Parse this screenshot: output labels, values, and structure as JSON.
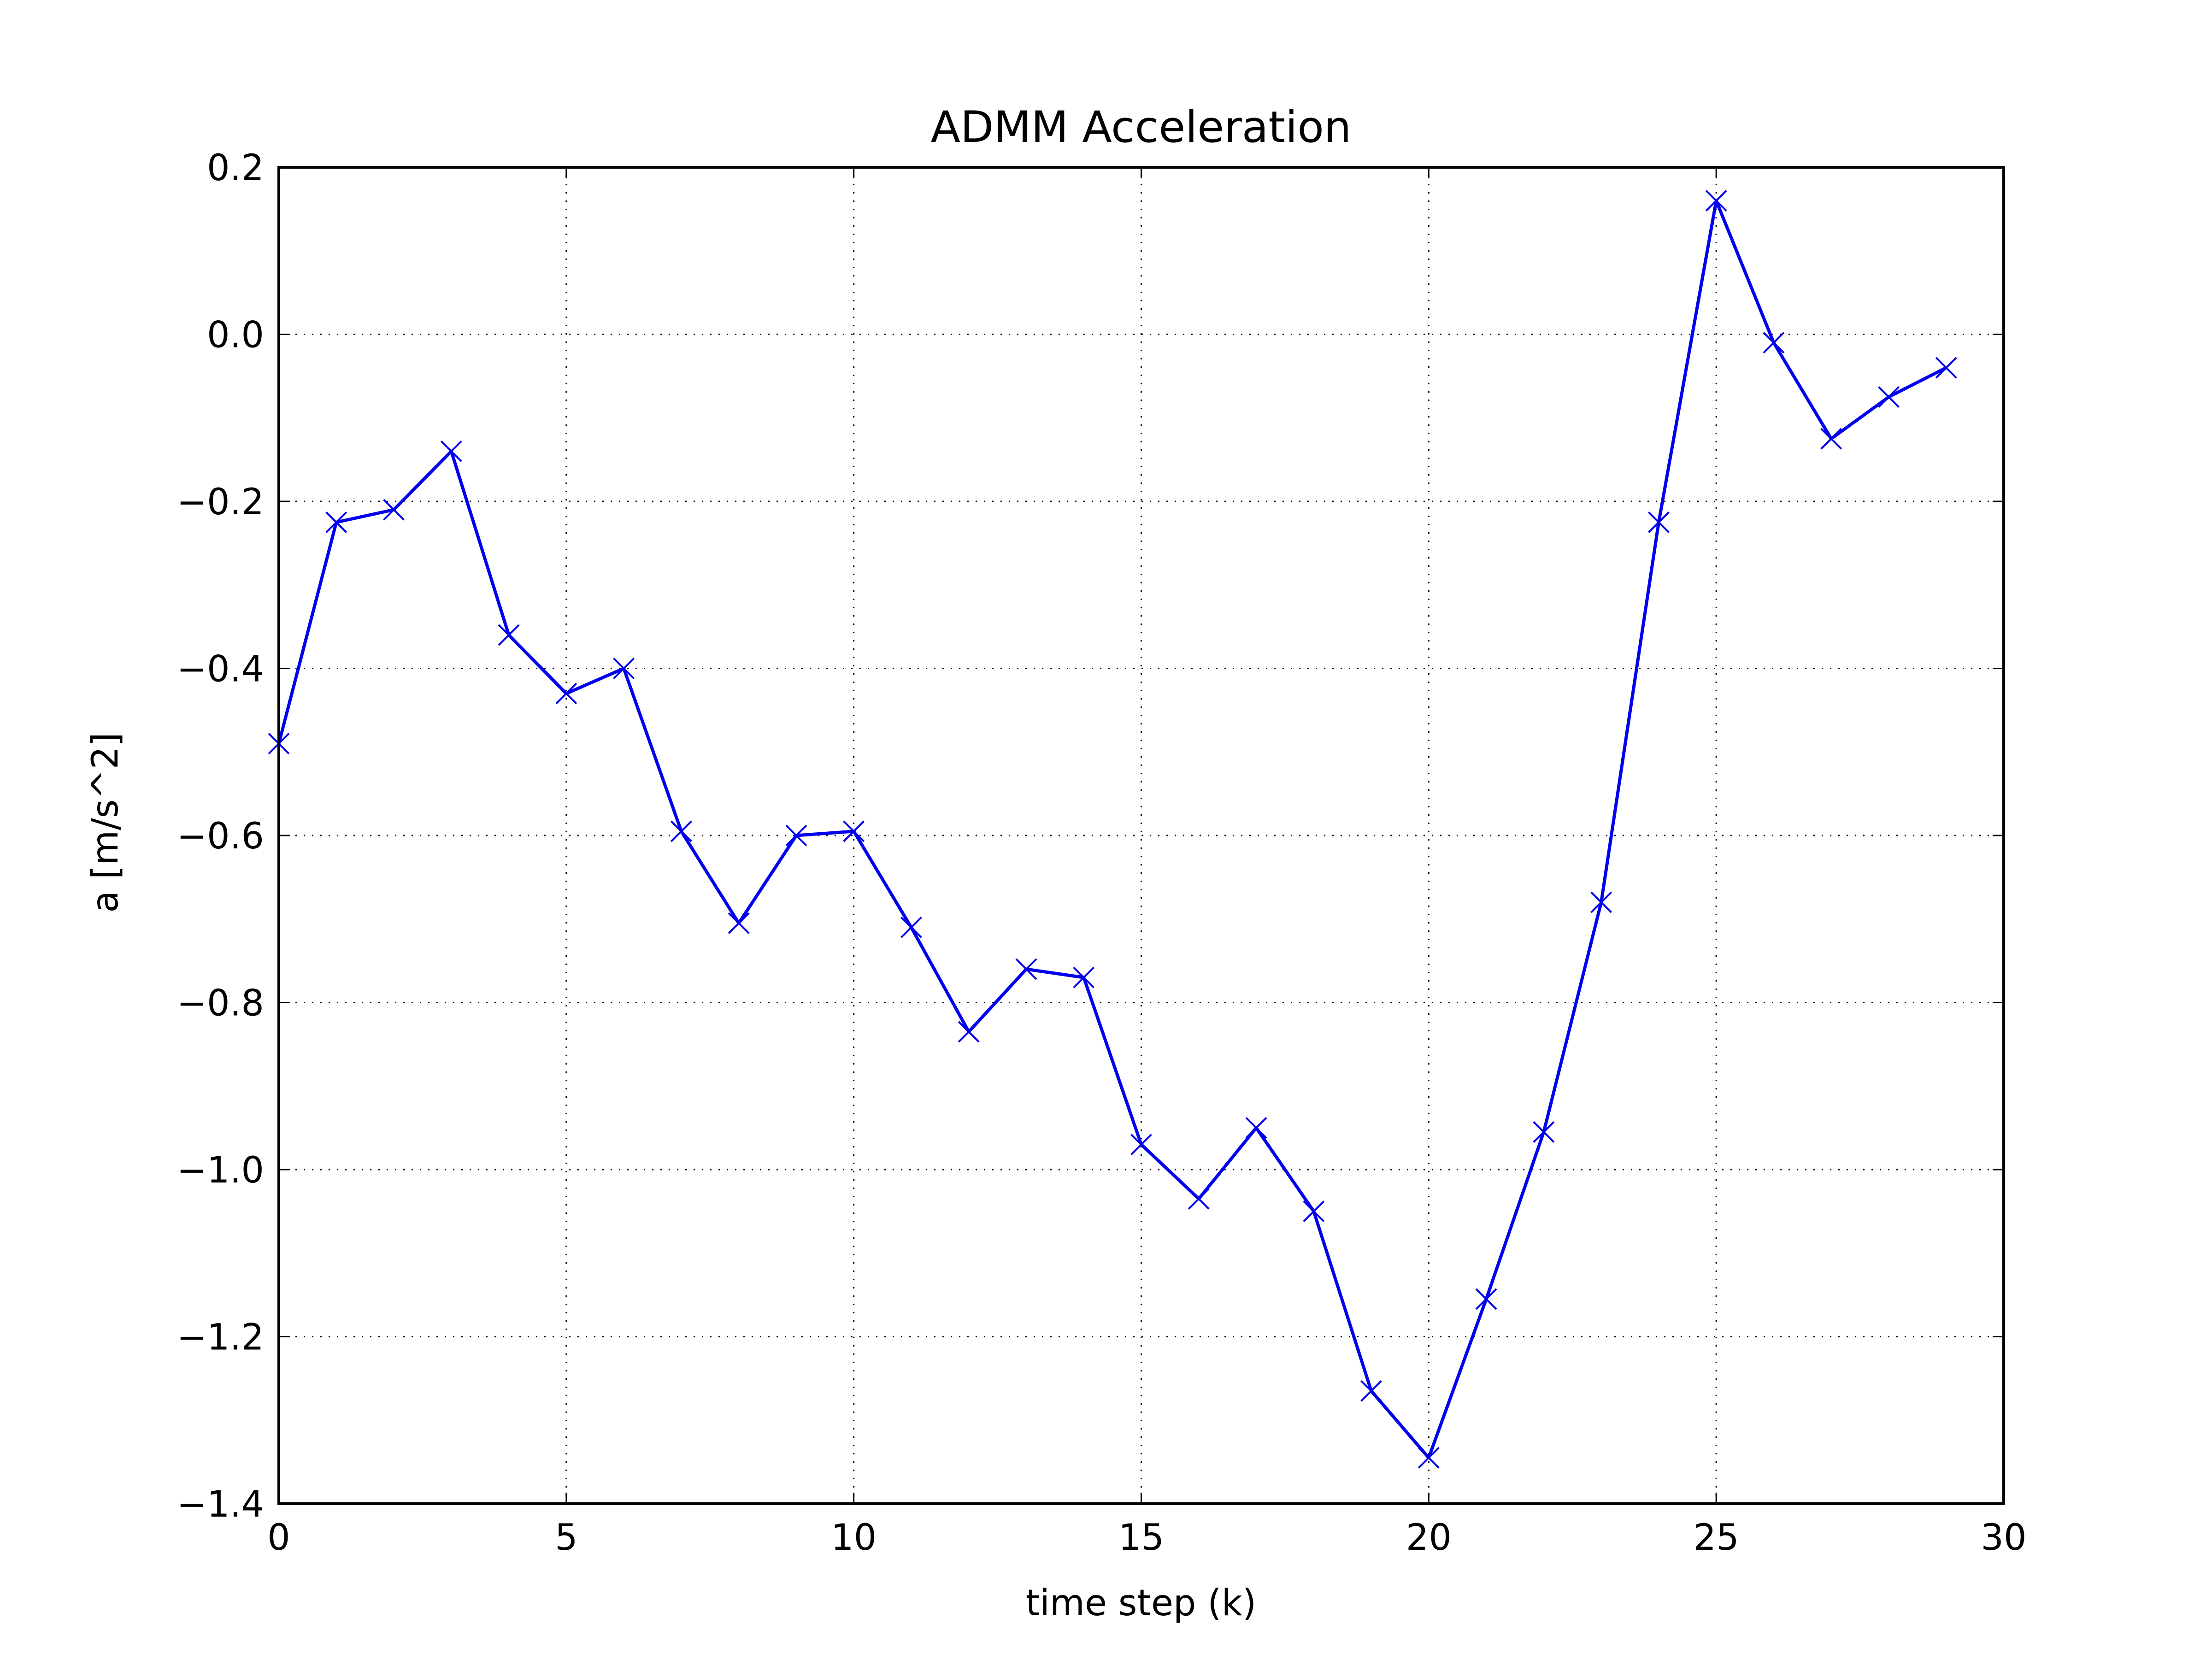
{
  "chart_data": {
    "type": "line",
    "title": "ADMM Acceleration",
    "xlabel": "time step (k)",
    "ylabel": "a [m/s^2]",
    "xlim": [
      0,
      30
    ],
    "ylim": [
      -1.4,
      0.2
    ],
    "xticks": [
      0,
      5,
      10,
      15,
      20,
      25,
      30
    ],
    "xtick_labels": [
      "0",
      "5",
      "10",
      "15",
      "20",
      "25",
      "30"
    ],
    "yticks": [
      0.2,
      0.0,
      -0.2,
      -0.4,
      -0.6,
      -0.8,
      -1.0,
      -1.2,
      -1.4
    ],
    "ytick_labels": [
      "0.2",
      "0.0",
      "−0.2",
      "−0.4",
      "−0.6",
      "−0.8",
      "−1.0",
      "−1.2",
      "−1.4"
    ],
    "grid": true,
    "color": "#0000ee",
    "marker": "x",
    "series": [
      {
        "x": [
          0,
          1,
          2,
          3,
          4,
          5,
          6,
          7,
          8,
          9,
          10,
          11,
          12,
          13,
          14,
          15,
          16,
          17,
          18,
          19,
          20,
          21,
          22,
          23,
          24,
          25,
          26,
          27,
          28,
          29
        ],
        "values": [
          -0.49,
          -0.225,
          -0.21,
          -0.14,
          -0.36,
          -0.43,
          -0.4,
          -0.595,
          -0.705,
          -0.6,
          -0.595,
          -0.71,
          -0.835,
          -0.76,
          -0.77,
          -0.97,
          -1.035,
          -0.95,
          -1.05,
          -1.265,
          -1.345,
          -1.155,
          -0.955,
          -0.68,
          -0.225,
          0.16,
          -0.01,
          -0.125,
          -0.075,
          -0.04
        ]
      }
    ]
  }
}
